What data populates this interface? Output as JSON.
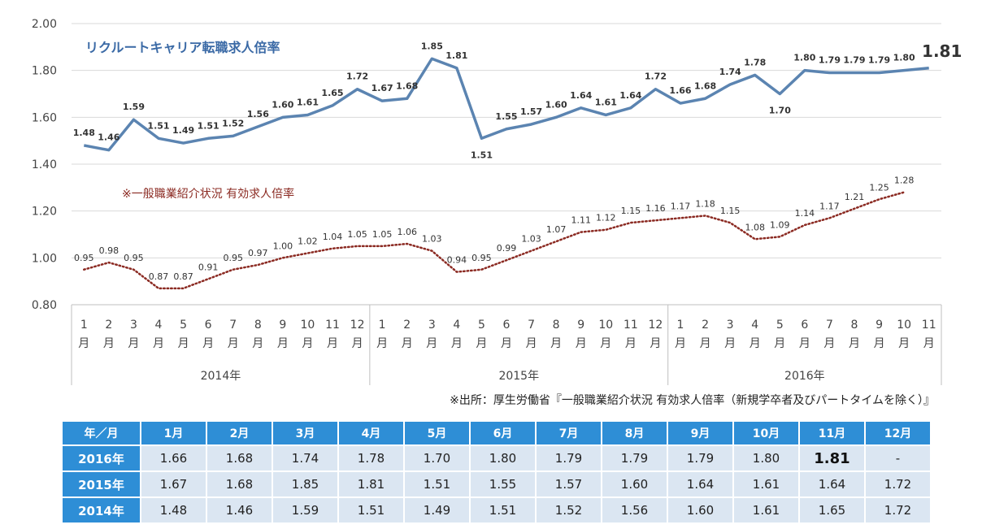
{
  "chart_data": {
    "type": "line",
    "ylim": [
      0.8,
      2.0
    ],
    "yticks": [
      "0.80",
      "1.00",
      "1.20",
      "1.40",
      "1.60",
      "1.80",
      "2.00"
    ],
    "month_labels": [
      "1",
      "2",
      "3",
      "4",
      "5",
      "6",
      "7",
      "8",
      "9",
      "10",
      "11",
      "12",
      "1",
      "2",
      "3",
      "4",
      "5",
      "6",
      "7",
      "8",
      "9",
      "10",
      "11",
      "12",
      "1",
      "2",
      "3",
      "4",
      "5",
      "6",
      "7",
      "8",
      "9",
      "10",
      "11"
    ],
    "month_suffix": "月",
    "years": [
      "2014年",
      "2015年",
      "2016年"
    ],
    "series": [
      {
        "name": "リクルートキャリア転職求人倍率",
        "style": "solid",
        "color": "#5b84b1",
        "values": [
          1.48,
          1.46,
          1.59,
          1.51,
          1.49,
          1.51,
          1.52,
          1.56,
          1.6,
          1.61,
          1.65,
          1.72,
          1.67,
          1.68,
          1.85,
          1.81,
          1.51,
          1.55,
          1.57,
          1.6,
          1.64,
          1.61,
          1.64,
          1.72,
          1.66,
          1.68,
          1.74,
          1.78,
          1.7,
          1.8,
          1.79,
          1.79,
          1.79,
          1.8,
          1.81
        ],
        "labels": [
          "1.48",
          "1.46",
          "1.59",
          "1.51",
          "1.49",
          "1.51",
          "1.52",
          "1.56",
          "1.60",
          "1.61",
          "1.65",
          "1.72",
          "1.67",
          "1.68",
          "1.85",
          "1.81",
          "1.51",
          "1.55",
          "1.57",
          "1.60",
          "1.64",
          "1.61",
          "1.64",
          "1.72",
          "1.66",
          "1.68",
          "1.74",
          "1.78",
          "1.70",
          "1.80",
          "1.79",
          "1.79",
          "1.79",
          "1.80",
          "1.81"
        ]
      },
      {
        "name": "※一般職業紹介状況 有効求人倍率",
        "style": "dotted",
        "color": "#8b2a22",
        "values": [
          0.95,
          0.98,
          0.95,
          0.87,
          0.87,
          0.91,
          0.95,
          0.97,
          1.0,
          1.02,
          1.04,
          1.05,
          1.05,
          1.06,
          1.03,
          0.94,
          0.95,
          0.99,
          1.03,
          1.07,
          1.11,
          1.12,
          1.15,
          1.16,
          1.17,
          1.18,
          1.15,
          1.08,
          1.09,
          1.14,
          1.17,
          1.21,
          1.25,
          1.28
        ],
        "labels": [
          "0.95",
          "0.98",
          "0.95",
          "0.87",
          "0.87",
          "0.91",
          "0.95",
          "0.97",
          "1.00",
          "1.02",
          "1.04",
          "1.05",
          "1.05",
          "1.06",
          "1.03",
          "0.94",
          "0.95",
          "0.99",
          "1.03",
          "1.07",
          "1.11",
          "1.12",
          "1.15",
          "1.16",
          "1.17",
          "1.18",
          "1.15",
          "1.08",
          "1.09",
          "1.14",
          "1.17",
          "1.21",
          "1.25",
          "1.28"
        ]
      }
    ]
  },
  "source_note": "※出所：厚生労働省『一般職業紹介状況 有効求人倍率（新規学卒者及びパートタイムを除く）』",
  "table": {
    "corner": "年／月",
    "months": [
      "1月",
      "2月",
      "3月",
      "4月",
      "5月",
      "6月",
      "7月",
      "8月",
      "9月",
      "10月",
      "11月",
      "12月"
    ],
    "rows": [
      {
        "year": "2016年",
        "values": [
          "1.66",
          "1.68",
          "1.74",
          "1.78",
          "1.70",
          "1.80",
          "1.79",
          "1.79",
          "1.79",
          "1.80",
          "1.81",
          "-"
        ]
      },
      {
        "year": "2015年",
        "values": [
          "1.67",
          "1.68",
          "1.85",
          "1.81",
          "1.51",
          "1.55",
          "1.57",
          "1.60",
          "1.64",
          "1.61",
          "1.64",
          "1.72"
        ]
      },
      {
        "year": "2014年",
        "values": [
          "1.48",
          "1.46",
          "1.59",
          "1.51",
          "1.49",
          "1.51",
          "1.52",
          "1.56",
          "1.60",
          "1.61",
          "1.65",
          "1.72"
        ]
      }
    ]
  }
}
